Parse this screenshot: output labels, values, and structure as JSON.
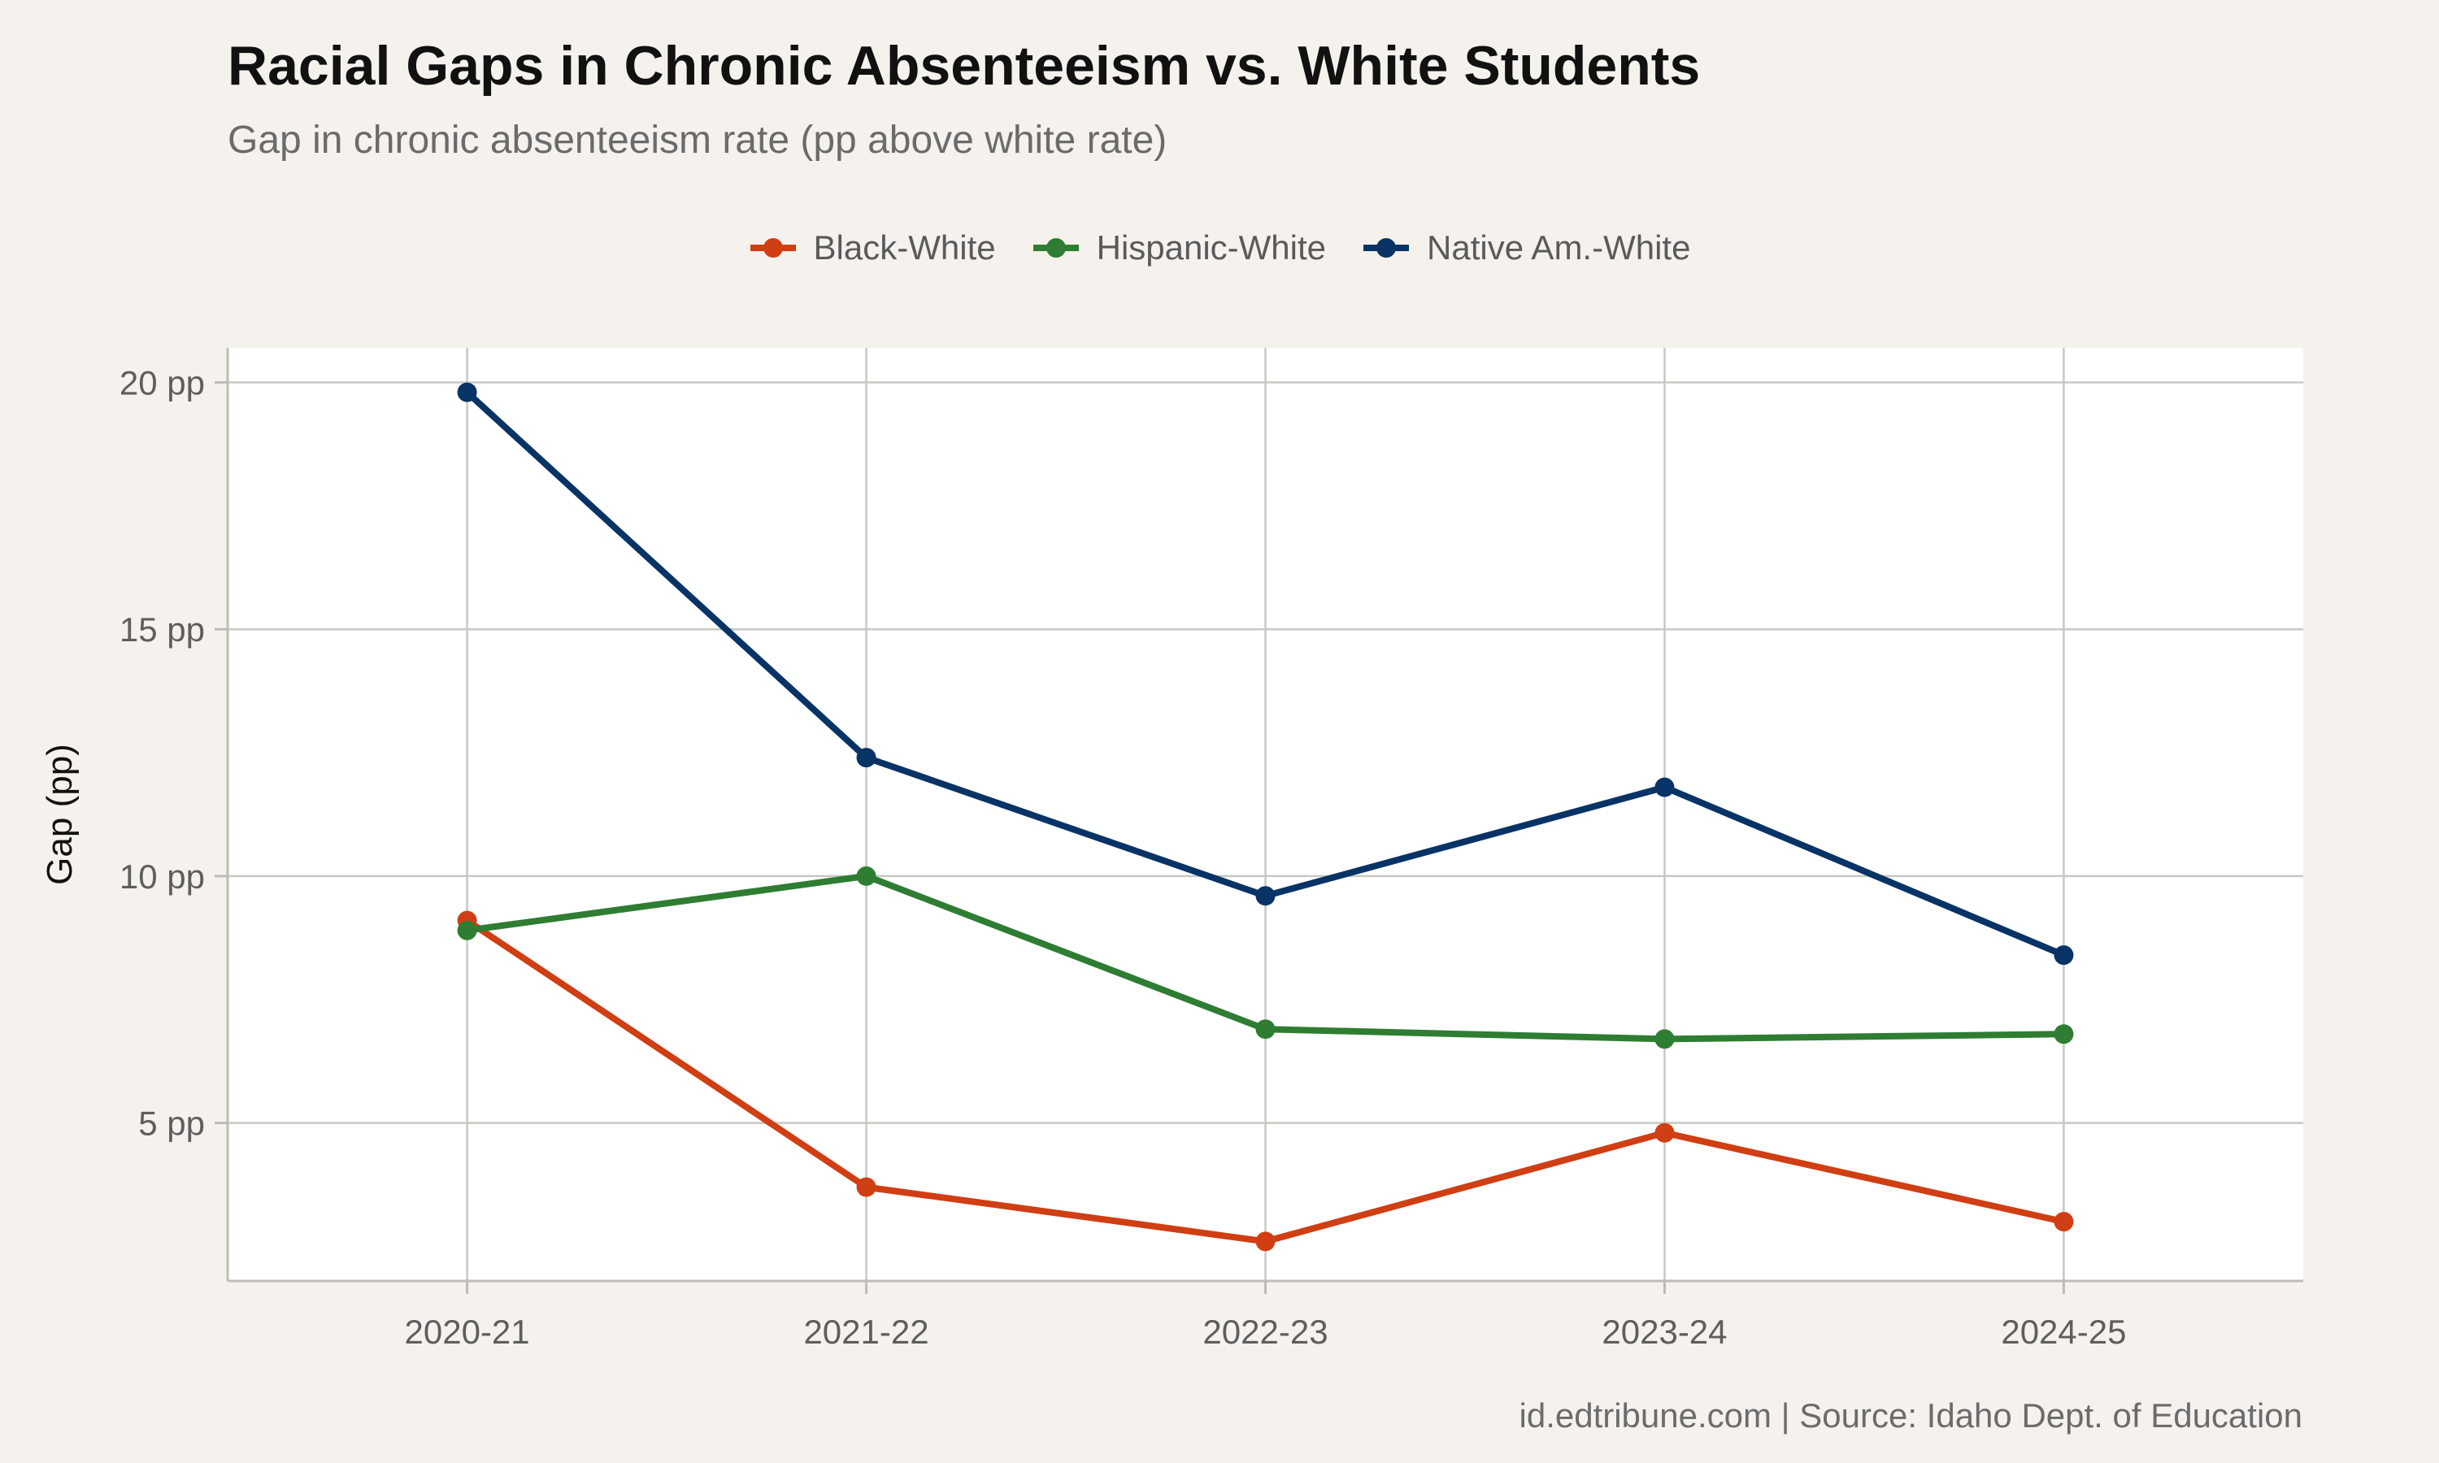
{
  "chart_data": {
    "type": "line",
    "title": "Racial Gaps in Chronic Absenteeism vs. White Students",
    "subtitle": "Gap in chronic absenteeism rate (pp above white rate)",
    "xlabel": "",
    "ylabel": "Gap (pp)",
    "caption": "id.edtribune.com | Source: Idaho Dept. of Education",
    "categories": [
      "2020-21",
      "2021-22",
      "2022-23",
      "2023-24",
      "2024-25"
    ],
    "ylim": [
      1.8,
      20.7
    ],
    "yticks": [
      5,
      10,
      15,
      20
    ],
    "ytick_labels": [
      "5 pp",
      "10 pp",
      "15 pp",
      "20 pp"
    ],
    "grid": true,
    "legend_position": "top",
    "series": [
      {
        "name": "Black-White",
        "color": "#d03e13",
        "values": [
          9.1,
          3.7,
          2.6,
          4.8,
          3.0
        ]
      },
      {
        "name": "Hispanic-White",
        "color": "#2e7d32",
        "values": [
          8.9,
          10.0,
          6.9,
          6.7,
          6.8
        ]
      },
      {
        "name": "Native Am.-White",
        "color": "#083366",
        "values": [
          19.8,
          12.4,
          9.6,
          11.8,
          8.4
        ]
      }
    ]
  }
}
